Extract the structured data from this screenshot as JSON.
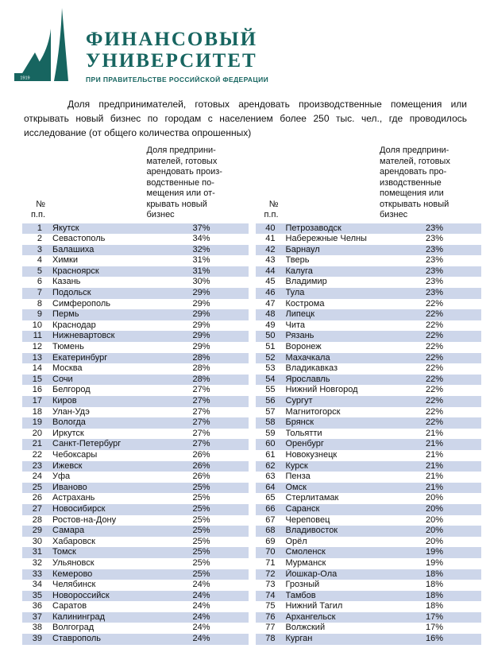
{
  "logo": {
    "title_line1": "ФИНАНСОВЫЙ",
    "title_line2": "УНИВЕРСИТЕТ",
    "subtitle": "ПРИ ПРАВИТЕЛЬСТВЕ РОССИЙСКОЙ ФЕДЕРАЦИИ",
    "year": "1919"
  },
  "intro": "Доля предпринимателей, готовых арендовать производственные помещения или открывать новый бизнес по городам с населением более 250 тыс. чел., где проводилось исследование (от общего количества опрошенных)",
  "colors": {
    "brand": "#176560",
    "stripe": "#cdd6ea"
  },
  "tables": [
    {
      "num_header": [
        "№",
        "п.п."
      ],
      "share_header": [
        "Доля предприни-",
        "мателей, готовых",
        "арендовать произ-",
        "водственные по-",
        "мещения или от-",
        "крывать новый",
        "бизнес"
      ],
      "rows": [
        [
          "1",
          "Якутск",
          "37%"
        ],
        [
          "2",
          "Севастополь",
          "34%"
        ],
        [
          "3",
          "Балашиха",
          "32%"
        ],
        [
          "4",
          "Химки",
          "31%"
        ],
        [
          "5",
          "Красноярск",
          "31%"
        ],
        [
          "6",
          "Казань",
          "30%"
        ],
        [
          "7",
          "Подольск",
          "29%"
        ],
        [
          "8",
          "Симферополь",
          "29%"
        ],
        [
          "9",
          "Пермь",
          "29%"
        ],
        [
          "10",
          "Краснодар",
          "29%"
        ],
        [
          "11",
          "Нижневартовск",
          "29%"
        ],
        [
          "12",
          "Тюмень",
          "29%"
        ],
        [
          "13",
          "Екатеринбург",
          "28%"
        ],
        [
          "14",
          "Москва",
          "28%"
        ],
        [
          "15",
          "Сочи",
          "28%"
        ],
        [
          "16",
          "Белгород",
          "27%"
        ],
        [
          "17",
          "Киров",
          "27%"
        ],
        [
          "18",
          "Улан-Удэ",
          "27%"
        ],
        [
          "19",
          "Вологда",
          "27%"
        ],
        [
          "20",
          "Иркутск",
          "27%"
        ],
        [
          "21",
          "Санкт-Петербург",
          "27%"
        ],
        [
          "22",
          "Чебоксары",
          "26%"
        ],
        [
          "23",
          "Ижевск",
          "26%"
        ],
        [
          "24",
          "Уфа",
          "26%"
        ],
        [
          "25",
          "Иваново",
          "25%"
        ],
        [
          "26",
          "Астрахань",
          "25%"
        ],
        [
          "27",
          "Новосибирск",
          "25%"
        ],
        [
          "28",
          "Ростов-на-Дону",
          "25%"
        ],
        [
          "29",
          "Самара",
          "25%"
        ],
        [
          "30",
          "Хабаровск",
          "25%"
        ],
        [
          "31",
          "Томск",
          "25%"
        ],
        [
          "32",
          "Ульяновск",
          "25%"
        ],
        [
          "33",
          "Кемерово",
          "25%"
        ],
        [
          "34",
          "Челябинск",
          "24%"
        ],
        [
          "35",
          "Новороссийск",
          "24%"
        ],
        [
          "36",
          "Саратов",
          "24%"
        ],
        [
          "37",
          "Калининград",
          "24%"
        ],
        [
          "38",
          "Волгоград",
          "24%"
        ],
        [
          "39",
          "Ставрополь",
          "24%"
        ]
      ]
    },
    {
      "num_header": [
        "№",
        "п.п."
      ],
      "share_header": [
        "Доля предприни-",
        "мателей, готовых",
        "арендовать про-",
        "изводственные",
        "помещения или",
        "открывать новый",
        "бизнес"
      ],
      "rows": [
        [
          "40",
          "Петрозаводск",
          "23%"
        ],
        [
          "41",
          "Набережные Челны",
          "23%"
        ],
        [
          "42",
          "Барнаул",
          "23%"
        ],
        [
          "43",
          "Тверь",
          "23%"
        ],
        [
          "44",
          "Калуга",
          "23%"
        ],
        [
          "45",
          "Владимир",
          "23%"
        ],
        [
          "46",
          "Тула",
          "23%"
        ],
        [
          "47",
          "Кострома",
          "22%"
        ],
        [
          "48",
          "Липецк",
          "22%"
        ],
        [
          "49",
          "Чита",
          "22%"
        ],
        [
          "50",
          "Рязань",
          "22%"
        ],
        [
          "51",
          "Воронеж",
          "22%"
        ],
        [
          "52",
          "Махачкала",
          "22%"
        ],
        [
          "53",
          "Владикавказ",
          "22%"
        ],
        [
          "54",
          "Ярославль",
          "22%"
        ],
        [
          "55",
          "Нижний Новгород",
          "22%"
        ],
        [
          "56",
          "Сургут",
          "22%"
        ],
        [
          "57",
          "Магнитогорск",
          "22%"
        ],
        [
          "58",
          "Брянск",
          "22%"
        ],
        [
          "59",
          "Тольятти",
          "21%"
        ],
        [
          "60",
          "Оренбург",
          "21%"
        ],
        [
          "61",
          "Новокузнецк",
          "21%"
        ],
        [
          "62",
          "Курск",
          "21%"
        ],
        [
          "63",
          "Пенза",
          "21%"
        ],
        [
          "64",
          "Омск",
          "21%"
        ],
        [
          "65",
          "Стерлитамак",
          "20%"
        ],
        [
          "66",
          "Саранск",
          "20%"
        ],
        [
          "67",
          "Череповец",
          "20%"
        ],
        [
          "68",
          "Владивосток",
          "20%"
        ],
        [
          "69",
          "Орёл",
          "20%"
        ],
        [
          "70",
          "Смоленск",
          "19%"
        ],
        [
          "71",
          "Мурманск",
          "19%"
        ],
        [
          "72",
          "Йошкар-Ола",
          "18%"
        ],
        [
          "73",
          "Грозный",
          "18%"
        ],
        [
          "74",
          "Тамбов",
          "18%"
        ],
        [
          "75",
          "Нижний Тагил",
          "18%"
        ],
        [
          "76",
          "Архангельск",
          "17%"
        ],
        [
          "77",
          "Волжский",
          "17%"
        ],
        [
          "78",
          "Курган",
          "16%"
        ]
      ]
    }
  ]
}
